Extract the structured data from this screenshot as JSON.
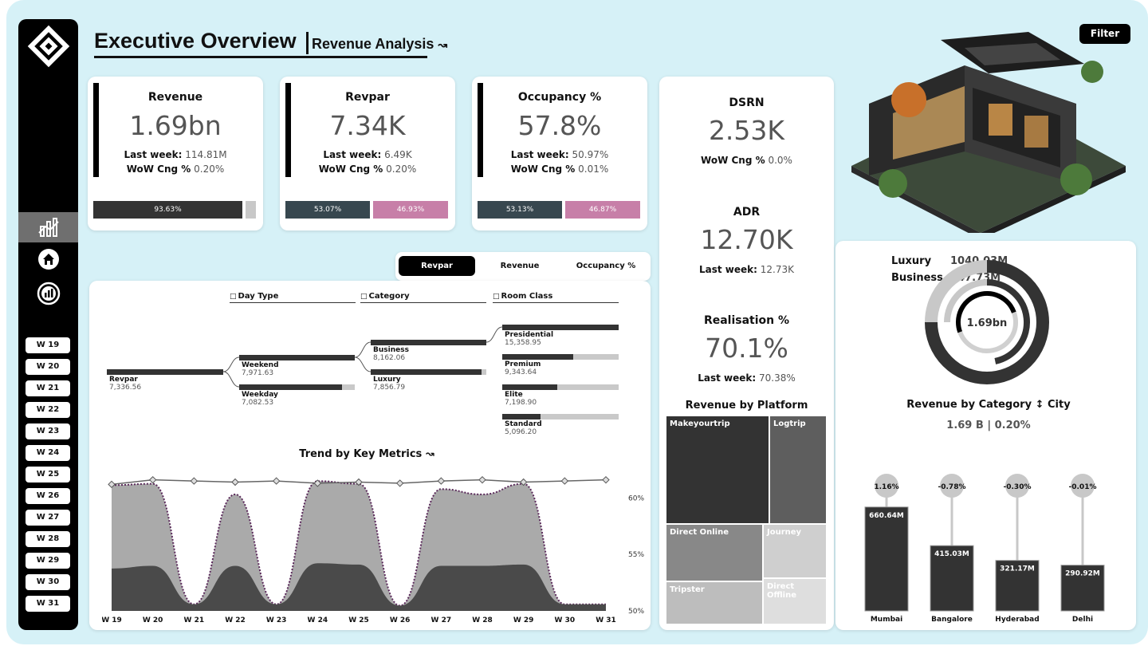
{
  "header": {
    "title": "Executive Overview",
    "subtitle": "Revenue Analysis",
    "subtitle_icon": "trend-icon",
    "filter_label": "Filter"
  },
  "sidebar": {
    "icons": [
      "logo-icon",
      "chart-icon",
      "home-icon",
      "report-icon"
    ],
    "weeks": [
      "W 19",
      "W 20",
      "W 21",
      "W 22",
      "W 23",
      "W 24",
      "W 25",
      "W 26",
      "W 27",
      "W 28",
      "W 29",
      "W 30",
      "W 31"
    ]
  },
  "kpis": [
    {
      "label": "Revenue",
      "value": "1.69bn",
      "last_week_label": "Last week:",
      "last_week": "114.81M",
      "wow_label": "WoW Cng %",
      "wow": "0.20%",
      "bar": [
        {
          "label": "93.63%",
          "fraction": 0.9363,
          "color": "#333333"
        },
        {
          "label": "",
          "fraction": 0.0637,
          "color": "#c8c8c8"
        }
      ]
    },
    {
      "label": "Revpar",
      "value": "7.34K",
      "last_week_label": "Last week:",
      "last_week": "6.49K",
      "wow_label": "WoW Cng %",
      "wow": "0.20%",
      "bar": [
        {
          "label": "53.07%",
          "fraction": 0.5307,
          "color": "#37474f"
        },
        {
          "label": "46.93%",
          "fraction": 0.4693,
          "color": "#c77fa8"
        }
      ]
    },
    {
      "label": "Occupancy %",
      "value": "57.8%",
      "last_week_label": "Last week:",
      "last_week": "50.97%",
      "wow_label": "WoW Cng %",
      "wow": "0.01%",
      "bar": [
        {
          "label": "53.13%",
          "fraction": 0.5313,
          "color": "#37474f"
        },
        {
          "label": "46.87%",
          "fraction": 0.4687,
          "color": "#c77fa8"
        }
      ]
    }
  ],
  "side_kpis": {
    "dsrn": {
      "label": "DSRN",
      "value": "2.53K",
      "wow_label": "WoW Cng %",
      "wow": "0.0%"
    },
    "adr": {
      "label": "ADR",
      "value": "12.70K",
      "last_week_label": "Last week:",
      "last_week": "12.73K"
    },
    "realisation": {
      "label": "Realisation %",
      "value": "70.1%",
      "last_week_label": "Last week:",
      "last_week": "70.38%"
    }
  },
  "tabs": [
    {
      "label": "Revpar",
      "active": true
    },
    {
      "label": "Revenue",
      "active": false
    },
    {
      "label": "Occupancy %",
      "active": false
    }
  ],
  "decomposition": {
    "headers": [
      "Day Type",
      "Category",
      "Room Class"
    ],
    "root": {
      "name": "Revpar",
      "value": "7,336.56"
    },
    "day_type": [
      {
        "name": "Weekend",
        "value": "7,971.63",
        "fraction": 1.0
      },
      {
        "name": "Weekday",
        "value": "7,082.53",
        "fraction": 0.89
      }
    ],
    "category": [
      {
        "name": "Business",
        "value": "8,162.06",
        "fraction": 1.0
      },
      {
        "name": "Luxury",
        "value": "7,856.79",
        "fraction": 0.96
      }
    ],
    "room_class": [
      {
        "name": "Presidential",
        "value": "15,358.95",
        "fraction": 1.0
      },
      {
        "name": "Premium",
        "value": "9,343.64",
        "fraction": 0.61
      },
      {
        "name": "Elite",
        "value": "7,198.90",
        "fraction": 0.47
      },
      {
        "name": "Standard",
        "value": "5,096.20",
        "fraction": 0.33
      }
    ]
  },
  "chart_data": {
    "type": "area",
    "title": "Trend by Key Metrics",
    "title_icon": "trend-icon",
    "categories": [
      "W 19",
      "W 20",
      "W 21",
      "W 22",
      "W 23",
      "W 24",
      "W 25",
      "W 26",
      "W 27",
      "W 28",
      "W 29",
      "W 30",
      "W 31"
    ],
    "series": [
      {
        "name": "Revpar",
        "values": [
          0.95,
          0.96,
          0.05,
          0.88,
          0.05,
          0.98,
          0.96,
          0.04,
          0.92,
          0.88,
          0.96,
          0.05,
          0.05
        ],
        "color": "#aaaaaa",
        "role": "outer-area"
      },
      {
        "name": "Revenue",
        "values": [
          0.32,
          0.34,
          0.05,
          0.34,
          0.05,
          0.36,
          0.35,
          0.04,
          0.34,
          0.34,
          0.35,
          0.05,
          0.05
        ],
        "color": "#4a4a4a",
        "role": "inner-area"
      },
      {
        "name": "Occupancy %",
        "values": [
          61.2,
          61.6,
          61.5,
          61.4,
          61.5,
          61.3,
          61.4,
          61.3,
          61.5,
          61.6,
          61.4,
          61.5,
          61.6
        ],
        "color": "#666666",
        "role": "line"
      }
    ],
    "y_right_ticks": [
      "60%",
      "55%",
      "50%"
    ],
    "y_right_range": [
      50,
      62
    ]
  },
  "platform": {
    "title": "Revenue by Platform",
    "items": [
      {
        "name": "Makeyourtrip",
        "color": "#333333"
      },
      {
        "name": "Logtrip",
        "color": "#5e5e5e"
      },
      {
        "name": "Direct Online",
        "color": "#888888"
      },
      {
        "name": "Journey",
        "color": "#cfcfcf"
      },
      {
        "name": "Tripster",
        "color": "#bdbdbd"
      },
      {
        "name": "Direct Offline",
        "color": "#dedede"
      }
    ]
  },
  "donut": {
    "legend": [
      {
        "name": "Luxury",
        "value": "1040.03M"
      },
      {
        "name": "Business",
        "value": "647.73M"
      }
    ],
    "center": "1.69bn",
    "rings": [
      {
        "fraction": 0.6163,
        "color": "#333333"
      },
      {
        "fraction": 0.3837,
        "color": "#333333"
      }
    ]
  },
  "city": {
    "title": "Revenue by Category",
    "title_icon": "sort-icon",
    "title_suffix": "City",
    "summary": "1.69 B | 0.20%",
    "items": [
      {
        "name": "Mumbai",
        "value": "660.64M",
        "amount": 660.64,
        "change": "1.16%"
      },
      {
        "name": "Bangalore",
        "value": "415.03M",
        "amount": 415.03,
        "change": "-0.78%"
      },
      {
        "name": "Hyderabad",
        "value": "321.17M",
        "amount": 321.17,
        "change": "-0.30%"
      },
      {
        "name": "Delhi",
        "value": "290.92M",
        "amount": 290.92,
        "change": "-0.01%"
      }
    ]
  }
}
